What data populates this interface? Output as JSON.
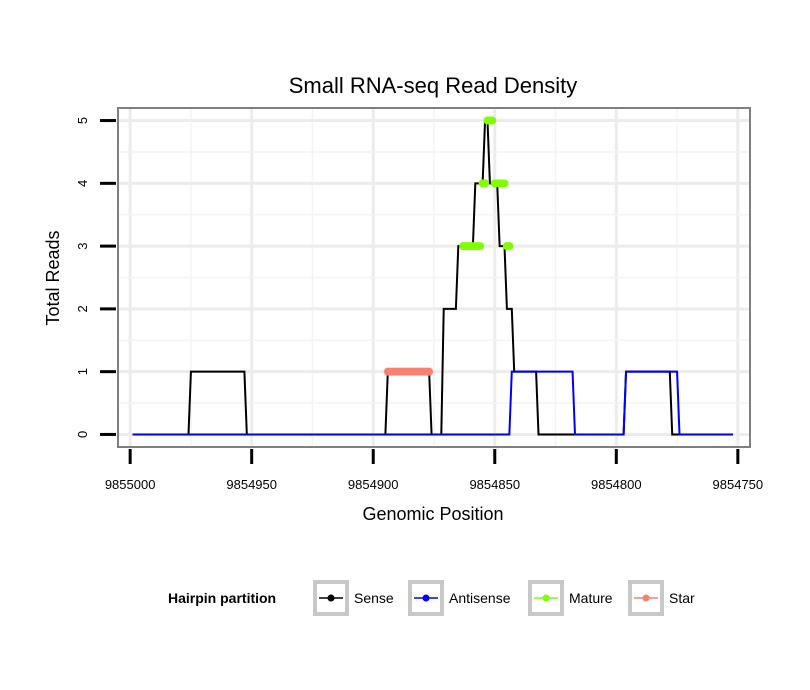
{
  "chart_data": {
    "type": "line",
    "title": "Small RNA-seq Read Density",
    "xlabel": "Genomic Position",
    "ylabel": "Total Reads",
    "x_reversed": true,
    "xlim": [
      9855005,
      9854745
    ],
    "ylim": [
      -0.2,
      5.2
    ],
    "x_ticks": [
      9855000,
      9854950,
      9854900,
      9854850,
      9854800,
      9854750
    ],
    "x_tick_labels": [
      "9855000",
      "9854950",
      "9854900",
      "9854850",
      "9854800",
      "9854750"
    ],
    "y_ticks": [
      0,
      1,
      2,
      3,
      4,
      5
    ],
    "y_tick_labels": [
      "0",
      "1",
      "2",
      "3",
      "4",
      "5"
    ],
    "grid": true,
    "legend": {
      "title": "Hairpin partition",
      "position": "bottom",
      "entries": [
        {
          "label": "Sense",
          "color": "#000000"
        },
        {
          "label": "Antisense",
          "color": "#0000FF"
        },
        {
          "label": "Mature",
          "color": "#7FFF00"
        },
        {
          "label": "Star",
          "color": "#FA8072"
        }
      ]
    },
    "series": [
      {
        "name": "Sense",
        "color": "#000000",
        "kind": "line",
        "x": [
          9854999,
          9854976,
          9854975,
          9854953,
          9854952,
          9854895,
          9854894,
          9854877,
          9854876,
          9854872,
          9854871,
          9854866,
          9854865,
          9854859,
          9854858,
          9854855,
          9854854,
          9854853,
          9854852,
          9854849,
          9854848,
          9854846,
          9854845,
          9854843,
          9854842,
          9854833,
          9854832,
          9854828,
          9854827,
          9854797,
          9854796,
          9854778,
          9854777,
          9854752
        ],
        "y": [
          0,
          0,
          1,
          1,
          0,
          0,
          1,
          1,
          0,
          0,
          2,
          2,
          3,
          3,
          4,
          4,
          5,
          5,
          4,
          4,
          3,
          3,
          2,
          2,
          1,
          1,
          0,
          0,
          0,
          0,
          1,
          1,
          0,
          0
        ]
      },
      {
        "name": "Antisense",
        "color": "#0000FF",
        "kind": "line",
        "x": [
          9854999,
          9854844,
          9854843,
          9854818,
          9854817,
          9854797,
          9854796,
          9854775,
          9854774,
          9854752
        ],
        "y": [
          0,
          0,
          1,
          1,
          0,
          0,
          1,
          1,
          0,
          0
        ]
      },
      {
        "name": "Mature",
        "color": "#7FFF00",
        "kind": "points",
        "x": [
          9854863,
          9854862,
          9854861,
          9854860,
          9854859,
          9854858,
          9854857,
          9854856,
          9854855,
          9854854,
          9854853,
          9854852,
          9854851,
          9854850,
          9854849,
          9854848,
          9854847,
          9854846,
          9854845,
          9854844
        ],
        "y": [
          3,
          3,
          3,
          3,
          3,
          3,
          3,
          3,
          4,
          4,
          5,
          5,
          5,
          4,
          4,
          4,
          4,
          4,
          3,
          3
        ]
      },
      {
        "name": "Star",
        "color": "#FA8072",
        "kind": "points",
        "x": [
          9854894,
          9854893,
          9854892,
          9854891,
          9854890,
          9854889,
          9854888,
          9854887,
          9854886,
          9854885,
          9854884,
          9854883,
          9854882,
          9854881,
          9854880,
          9854879,
          9854878,
          9854877
        ],
        "y": [
          1,
          1,
          1,
          1,
          1,
          1,
          1,
          1,
          1,
          1,
          1,
          1,
          1,
          1,
          1,
          1,
          1,
          1
        ]
      }
    ]
  }
}
